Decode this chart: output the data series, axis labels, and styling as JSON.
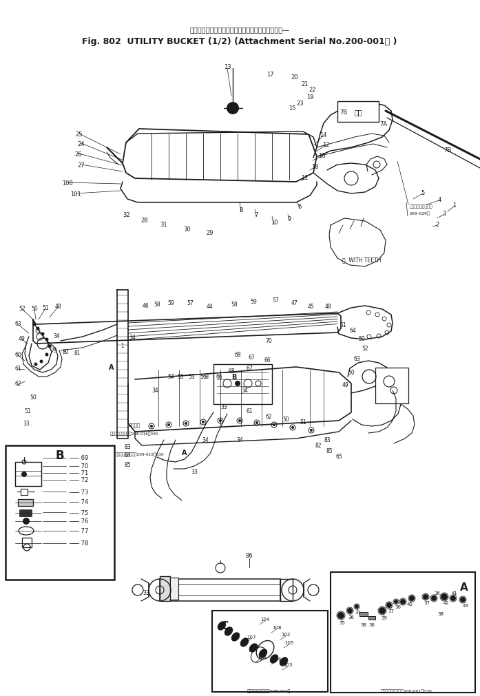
{
  "title_japanese": "ユーティリティバケット　　アタッチメント号機　―",
  "title_main": "Fig. 802  UTILITY BUCKET (1/2) (Attachment Serial No.200-001～ )",
  "bg_color": "#ffffff",
  "line_color": "#1a1a1a",
  "fig_width": 6.97,
  "fig_height": 10.12,
  "dpi": 100,
  "box_B_label": "B",
  "box_A_label": "A",
  "box_C_label": "C",
  "title_jp_fontsize": 7,
  "title_main_fontsize": 9
}
